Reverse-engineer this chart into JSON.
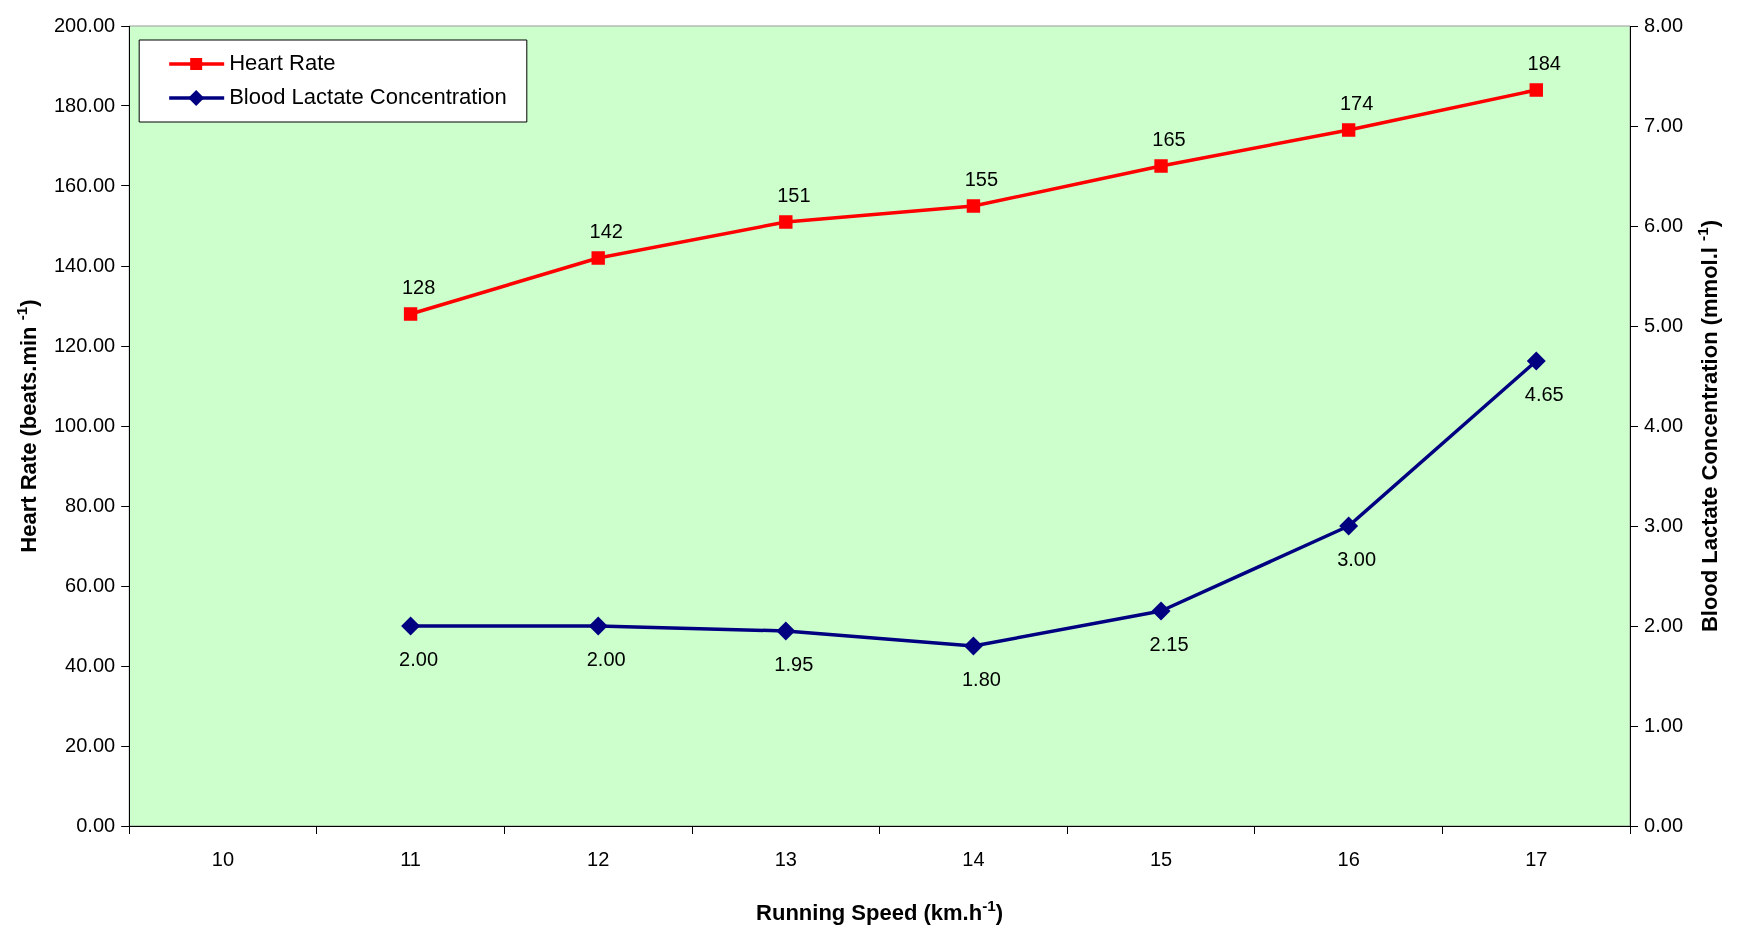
{
  "chart_data": {
    "type": "line",
    "xlabel": "Running Speed (km.h$^{-1}$)",
    "ylabel": "Heart Rate (beats.min $^{-1}$)",
    "y2label": "Blood Lactate Concentration (mmol.l $^{-1}$)",
    "categories": [
      "10",
      "11",
      "12",
      "13",
      "14",
      "15",
      "16",
      "17"
    ],
    "series": [
      {
        "name": "Heart Rate",
        "color": "#ff0000",
        "marker": "square",
        "values": [
          null,
          128,
          142,
          151,
          155,
          165,
          174,
          184
        ],
        "value_labels": [
          null,
          "128",
          "142",
          "151",
          "155",
          "165",
          "174",
          "184"
        ]
      },
      {
        "name": "Blood Lactate Concentration",
        "color": "#000080",
        "marker": "diamond",
        "axis": "y2",
        "values": [
          null,
          2.0,
          2.0,
          1.95,
          1.8,
          2.15,
          3.0,
          4.65
        ],
        "value_labels": [
          null,
          "2.00",
          "2.00",
          "1.95",
          "1.80",
          "2.15",
          "3.00",
          "4.65"
        ]
      }
    ],
    "ylim": [
      0,
      200
    ],
    "yticks": [
      {
        "value": 0,
        "label": "0.00"
      },
      {
        "value": 20,
        "label": "20.00"
      },
      {
        "value": 40,
        "label": "40.00"
      },
      {
        "value": 60,
        "label": "60.00"
      },
      {
        "value": 80,
        "label": "80.00"
      },
      {
        "value": 100,
        "label": "100.00"
      },
      {
        "value": 120,
        "label": "120.00"
      },
      {
        "value": 140,
        "label": "140.00"
      },
      {
        "value": 160,
        "label": "160.00"
      },
      {
        "value": 180,
        "label": "180.00"
      },
      {
        "value": 200,
        "label": "200.00"
      }
    ],
    "y2lim": [
      0,
      8
    ],
    "y2ticks": [
      {
        "value": 0,
        "label": "0.00"
      },
      {
        "value": 1,
        "label": "1.00"
      },
      {
        "value": 2,
        "label": "2.00"
      },
      {
        "value": 3,
        "label": "3.00"
      },
      {
        "value": 4,
        "label": "4.00"
      },
      {
        "value": 5,
        "label": "5.00"
      },
      {
        "value": 6,
        "label": "6.00"
      },
      {
        "value": 7,
        "label": "7.00"
      },
      {
        "value": 8,
        "label": "8.00"
      }
    ],
    "grid": false,
    "legend": "top left"
  }
}
